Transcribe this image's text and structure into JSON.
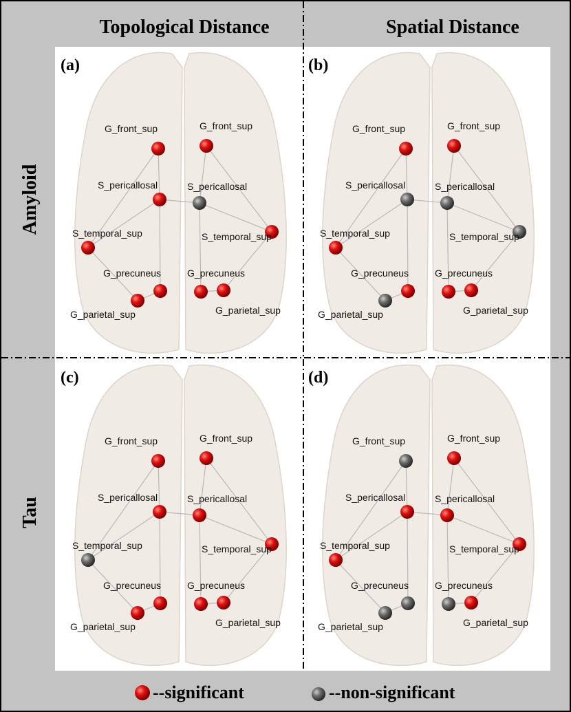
{
  "headers": {
    "columns": [
      "Topological Distance",
      "Spatial Distance"
    ],
    "rows": [
      "Amyloid",
      "Tau"
    ]
  },
  "panels": [
    {
      "label": "(a)",
      "nodes": [
        {
          "label": "G_front_sup",
          "significant": true
        },
        {
          "label": "G_front_sup",
          "significant": true
        },
        {
          "label": "S_pericallosal",
          "significant": true
        },
        {
          "label": "S_pericallosal",
          "significant": false
        },
        {
          "label": "S_temporal_sup",
          "significant": true
        },
        {
          "label": "S_temporal_sup",
          "significant": true
        },
        {
          "label": "G_precuneus",
          "significant": true
        },
        {
          "label": "G_parietal_sup",
          "significant": true
        },
        {
          "label": "G_precuneus",
          "significant": true
        },
        {
          "label": "G_parietal_sup",
          "significant": true
        }
      ]
    },
    {
      "label": "(b)",
      "nodes": [
        {
          "label": "G_front_sup",
          "significant": true
        },
        {
          "label": "G_front_sup",
          "significant": true
        },
        {
          "label": "S_pericallosal",
          "significant": false
        },
        {
          "label": "S_pericallosal",
          "significant": false
        },
        {
          "label": "S_temporal_sup",
          "significant": true
        },
        {
          "label": "S_temporal_sup",
          "significant": false
        },
        {
          "label": "G_precuneus",
          "significant": true
        },
        {
          "label": "G_parietal_sup",
          "significant": false
        },
        {
          "label": "G_precuneus",
          "significant": true
        },
        {
          "label": "G_parietal_sup",
          "significant": true
        }
      ]
    },
    {
      "label": "(c)",
      "nodes": [
        {
          "label": "G_front_sup",
          "significant": true
        },
        {
          "label": "G_front_sup",
          "significant": true
        },
        {
          "label": "S_pericallosal",
          "significant": true
        },
        {
          "label": "S_pericallosal",
          "significant": true
        },
        {
          "label": "S_temporal_sup",
          "significant": false
        },
        {
          "label": "S_temporal_sup",
          "significant": true
        },
        {
          "label": "G_precuneus",
          "significant": true
        },
        {
          "label": "G_parietal_sup",
          "significant": true
        },
        {
          "label": "G_precuneus",
          "significant": true
        },
        {
          "label": "G_parietal_sup",
          "significant": true
        }
      ]
    },
    {
      "label": "(d)",
      "nodes": [
        {
          "label": "G_front_sup",
          "significant": false
        },
        {
          "label": "G_front_sup",
          "significant": true
        },
        {
          "label": "S_pericallosal",
          "significant": true
        },
        {
          "label": "S_pericallosal",
          "significant": true
        },
        {
          "label": "S_temporal_sup",
          "significant": true
        },
        {
          "label": "S_temporal_sup",
          "significant": true
        },
        {
          "label": "G_precuneus",
          "significant": false
        },
        {
          "label": "G_parietal_sup",
          "significant": false
        },
        {
          "label": "G_precuneus",
          "significant": false
        },
        {
          "label": "G_parietal_sup",
          "significant": true
        }
      ]
    }
  ],
  "legend": {
    "significant": "--significant",
    "non_significant": "--non-significant"
  }
}
